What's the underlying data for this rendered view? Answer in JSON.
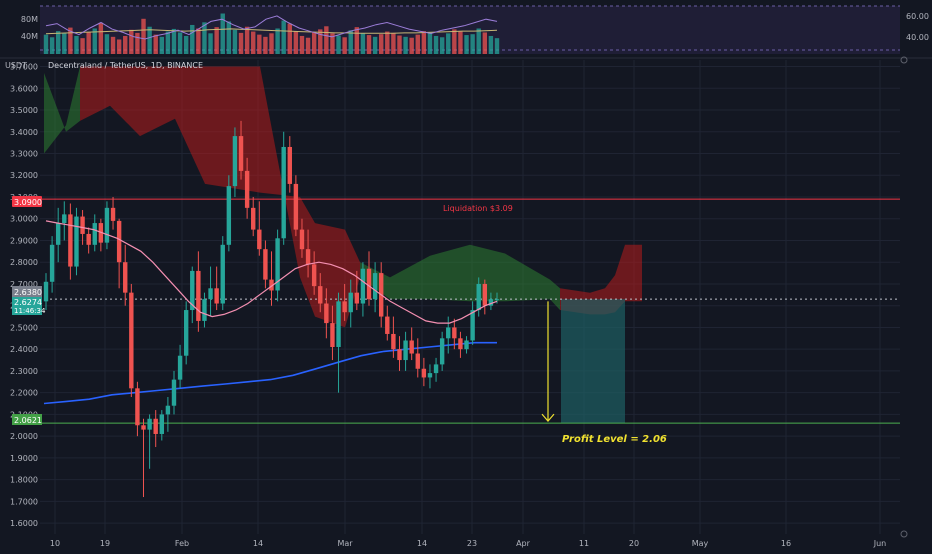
{
  "header": {
    "currency": "USDT",
    "symbol_title": "Decentraland / TetherUS, 1D, BINANCE"
  },
  "volume_panel": {
    "left_labels": [
      "80M",
      "40M"
    ],
    "right_labels": [
      "60.00",
      "40.00"
    ]
  },
  "badges": {
    "liquidation_price": "3.0900",
    "price_a": "2.6380",
    "price_b": "2.6274",
    "countdown": "11:46:34",
    "profit_price": "2.0621"
  },
  "annotations": {
    "liquidation": "Liquidation  $3.09",
    "profit": "Profit Level = 2.06"
  },
  "colors": {
    "background": "#131722",
    "grid": "#1f2433",
    "up": "#26a69a",
    "down": "#ef5350",
    "ma_short": "#f48fb1",
    "ma_long": "#2962ff",
    "liquidation_line": "#f23645",
    "profit_line": "#4caf50",
    "arrow": "#f0e130"
  },
  "chart_data": {
    "type": "candlestick",
    "y_axis_ticks": [
      "3.7000",
      "3.6000",
      "3.5000",
      "3.4000",
      "3.3000",
      "3.2000",
      "3.1000",
      "3.0000",
      "2.9000",
      "2.8000",
      "2.7000",
      "2.6000",
      "2.5000",
      "2.4000",
      "2.3000",
      "2.2000",
      "2.1000",
      "2.0000",
      "1.9000",
      "1.8000",
      "1.7000",
      "1.6000"
    ],
    "x_axis_ticks": [
      "10",
      "19",
      "Feb",
      "14",
      "Mar",
      "14",
      "23",
      "Apr",
      "11",
      "20",
      "May",
      "16",
      "Jun"
    ],
    "ylim": [
      1.55,
      3.73
    ],
    "horizontal_levels": [
      {
        "name": "Liquidation",
        "value": 3.09
      },
      {
        "name": "Profit Level",
        "value": 2.06
      }
    ],
    "candles": [
      [
        2.62,
        2.75,
        2.58,
        2.71
      ],
      [
        2.71,
        2.92,
        2.66,
        2.88
      ],
      [
        2.88,
        3.05,
        2.8,
        2.98
      ],
      [
        2.98,
        3.08,
        2.9,
        3.02
      ],
      [
        3.02,
        3.07,
        2.72,
        2.78
      ],
      [
        2.78,
        3.05,
        2.74,
        3.01
      ],
      [
        3.01,
        3.04,
        2.88,
        2.93
      ],
      [
        2.93,
        2.96,
        2.84,
        2.88
      ],
      [
        2.88,
        3.02,
        2.85,
        2.98
      ],
      [
        2.98,
        3.0,
        2.85,
        2.89
      ],
      [
        2.89,
        3.08,
        2.86,
        3.05
      ],
      [
        3.05,
        3.1,
        2.95,
        2.99
      ],
      [
        2.99,
        3.0,
        2.68,
        2.8
      ],
      [
        2.8,
        2.88,
        2.6,
        2.66
      ],
      [
        2.66,
        2.7,
        2.18,
        2.22
      ],
      [
        2.22,
        2.25,
        2.0,
        2.05
      ],
      [
        2.05,
        2.08,
        1.72,
        2.03
      ],
      [
        2.03,
        2.1,
        1.85,
        2.08
      ],
      [
        2.08,
        2.12,
        1.95,
        2.01
      ],
      [
        2.01,
        2.12,
        1.98,
        2.1
      ],
      [
        2.1,
        2.18,
        2.02,
        2.14
      ],
      [
        2.14,
        2.3,
        2.1,
        2.26
      ],
      [
        2.26,
        2.42,
        2.22,
        2.37
      ],
      [
        2.37,
        2.62,
        2.33,
        2.58
      ],
      [
        2.58,
        2.78,
        2.52,
        2.76
      ],
      [
        2.76,
        2.85,
        2.48,
        2.53
      ],
      [
        2.53,
        2.66,
        2.5,
        2.63
      ],
      [
        2.63,
        2.78,
        2.55,
        2.68
      ],
      [
        2.68,
        2.78,
        2.58,
        2.61
      ],
      [
        2.61,
        2.92,
        2.58,
        2.88
      ],
      [
        2.88,
        3.2,
        2.85,
        3.15
      ],
      [
        3.15,
        3.42,
        3.1,
        3.38
      ],
      [
        3.38,
        3.45,
        3.18,
        3.22
      ],
      [
        3.22,
        3.28,
        3.0,
        3.05
      ],
      [
        3.05,
        3.1,
        2.92,
        2.95
      ],
      [
        2.95,
        3.08,
        2.83,
        2.86
      ],
      [
        2.86,
        2.9,
        2.68,
        2.72
      ],
      [
        2.72,
        2.85,
        2.6,
        2.67
      ],
      [
        2.67,
        2.95,
        2.62,
        2.91
      ],
      [
        2.91,
        3.4,
        2.88,
        3.33
      ],
      [
        3.33,
        3.38,
        3.12,
        3.16
      ],
      [
        3.16,
        3.2,
        2.92,
        2.95
      ],
      [
        2.95,
        3.0,
        2.82,
        2.86
      ],
      [
        2.86,
        2.95,
        2.73,
        2.79
      ],
      [
        2.79,
        2.85,
        2.65,
        2.69
      ],
      [
        2.69,
        2.75,
        2.57,
        2.61
      ],
      [
        2.61,
        2.68,
        2.45,
        2.52
      ],
      [
        2.52,
        2.6,
        2.35,
        2.41
      ],
      [
        2.41,
        2.66,
        2.2,
        2.62
      ],
      [
        2.62,
        2.7,
        2.53,
        2.57
      ],
      [
        2.57,
        2.72,
        2.5,
        2.66
      ],
      [
        2.66,
        2.76,
        2.58,
        2.61
      ],
      [
        2.61,
        2.8,
        2.55,
        2.77
      ],
      [
        2.77,
        2.85,
        2.6,
        2.63
      ],
      [
        2.63,
        2.8,
        2.57,
        2.75
      ],
      [
        2.75,
        2.8,
        2.5,
        2.55
      ],
      [
        2.55,
        2.6,
        2.44,
        2.47
      ],
      [
        2.47,
        2.55,
        2.36,
        2.4
      ],
      [
        2.4,
        2.46,
        2.3,
        2.35
      ],
      [
        2.35,
        2.48,
        2.3,
        2.44
      ],
      [
        2.44,
        2.5,
        2.35,
        2.38
      ],
      [
        2.38,
        2.45,
        2.27,
        2.31
      ],
      [
        2.31,
        2.36,
        2.23,
        2.27
      ],
      [
        2.27,
        2.33,
        2.22,
        2.29
      ],
      [
        2.29,
        2.36,
        2.25,
        2.33
      ],
      [
        2.33,
        2.48,
        2.3,
        2.45
      ],
      [
        2.45,
        2.55,
        2.38,
        2.5
      ],
      [
        2.5,
        2.54,
        2.4,
        2.45
      ],
      [
        2.45,
        2.48,
        2.36,
        2.4
      ],
      [
        2.4,
        2.46,
        2.38,
        2.44
      ],
      [
        2.44,
        2.62,
        2.42,
        2.58
      ],
      [
        2.58,
        2.73,
        2.55,
        2.7
      ],
      [
        2.7,
        2.72,
        2.56,
        2.6
      ],
      [
        2.6,
        2.66,
        2.58,
        2.63
      ],
      [
        2.63,
        2.66,
        2.61,
        2.63
      ]
    ],
    "ma_short": [
      2.99,
      2.98,
      2.97,
      2.96,
      2.95,
      2.93,
      2.91,
      2.88,
      2.85,
      2.8,
      2.74,
      2.68,
      2.62,
      2.57,
      2.55,
      2.56,
      2.58,
      2.61,
      2.65,
      2.69,
      2.73,
      2.77,
      2.79,
      2.8,
      2.79,
      2.77,
      2.74,
      2.7,
      2.66,
      2.62,
      2.59,
      2.56,
      2.53,
      2.52,
      2.52,
      2.54,
      2.57,
      2.6,
      2.62
    ],
    "ma_long": [
      2.15,
      2.16,
      2.17,
      2.19,
      2.2,
      2.21,
      2.22,
      2.23,
      2.24,
      2.25,
      2.26,
      2.28,
      2.31,
      2.34,
      2.37,
      2.39,
      2.4,
      2.41,
      2.42,
      2.43,
      2.43
    ],
    "volume": [
      44,
      38,
      52,
      47,
      60,
      41,
      36,
      49,
      58,
      71,
      45,
      39,
      33,
      41,
      55,
      48,
      80,
      62,
      44,
      39,
      51,
      57,
      49,
      41,
      66,
      58,
      72,
      47,
      61,
      92,
      74,
      55,
      48,
      62,
      51,
      44,
      39,
      47,
      58,
      76,
      69,
      52,
      41,
      37,
      49,
      56,
      63,
      47,
      42,
      38,
      54,
      61,
      47,
      43,
      39,
      45,
      51,
      48,
      42,
      39,
      37,
      44,
      52,
      49,
      41,
      38,
      47,
      56,
      51,
      43,
      45,
      58,
      49,
      41,
      36
    ],
    "volume_ma": [
      46,
      47,
      48,
      49,
      50,
      51,
      52,
      53,
      54,
      55,
      54,
      53,
      52,
      53,
      55,
      56,
      57,
      56,
      55,
      54,
      53,
      52,
      51,
      50,
      49,
      48,
      48,
      47,
      47,
      47,
      47,
      48,
      48,
      49,
      50,
      51,
      52,
      52,
      53,
      54
    ],
    "rsi": [
      52,
      54,
      48,
      44,
      50,
      55,
      49,
      46,
      42,
      40,
      43,
      45,
      48,
      44,
      50,
      56,
      58,
      53,
      49,
      51,
      58,
      61,
      55,
      50,
      47,
      44,
      42,
      45,
      48,
      50,
      53,
      55,
      52,
      49,
      47,
      45,
      48,
      50,
      52,
      55,
      58,
      56
    ],
    "cloud_top": [
      3.67,
      3.4,
      3.45,
      3.52,
      3.38,
      3.46,
      3.16,
      3.12,
      3.1,
      2.98,
      2.95,
      2.8,
      2.73,
      2.83,
      2.88,
      2.84,
      2.72,
      2.68,
      2.66,
      2.68,
      2.74,
      2.88,
      2.88
    ],
    "cloud_bottom": [
      3.3,
      3.43,
      3.7,
      3.7,
      3.7,
      3.7,
      3.7,
      3.7,
      2.73,
      2.55,
      2.5,
      2.73,
      2.63,
      2.63,
      2.62,
      2.62,
      2.63,
      2.58,
      2.56,
      2.56,
      2.57,
      2.62,
      2.62
    ],
    "cloud_color": [
      "up",
      "up",
      "down",
      "down",
      "down",
      "down",
      "down",
      "down",
      "down",
      "down",
      "down",
      "up",
      "up",
      "up",
      "up",
      "up",
      "up",
      "down",
      "down",
      "down",
      "down",
      "down",
      "down"
    ],
    "target_box": {
      "top": 2.63,
      "bottom": 2.06
    },
    "arrow": {
      "from": 2.62,
      "to": 2.06
    }
  }
}
